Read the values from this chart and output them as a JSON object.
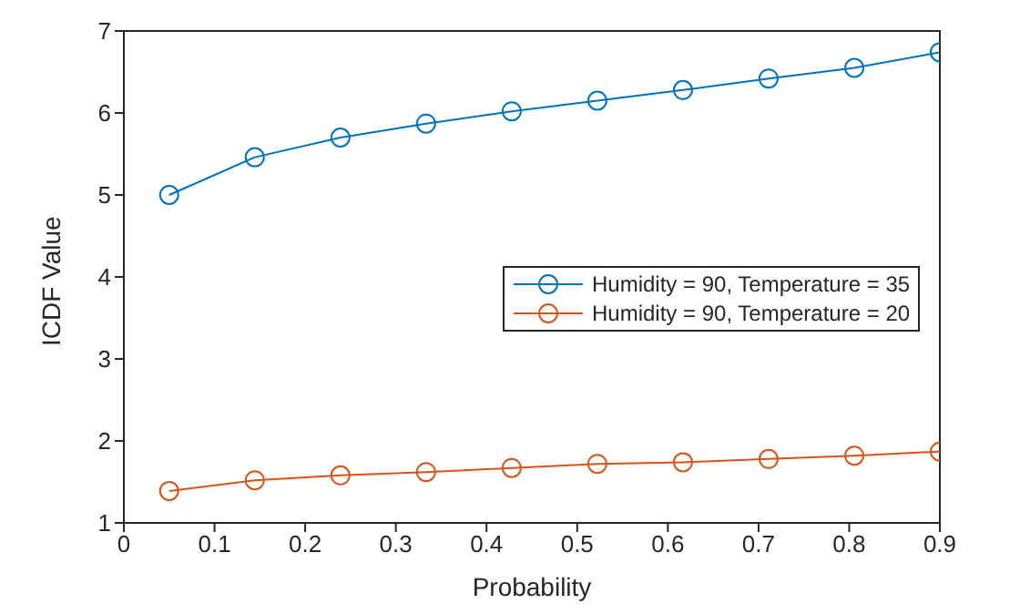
{
  "chart_data": {
    "type": "line",
    "xlabel": "Probability",
    "ylabel": "ICDF Value",
    "x": [
      0.05,
      0.1444,
      0.2389,
      0.3333,
      0.4278,
      0.5222,
      0.6167,
      0.7111,
      0.8056,
      0.9
    ],
    "series": [
      {
        "name": "Humidity = 90, Temperature = 35",
        "color": "#0072bd",
        "values": [
          5.0,
          5.46,
          5.7,
          5.87,
          6.02,
          6.15,
          6.28,
          6.42,
          6.55,
          6.74
        ]
      },
      {
        "name": "Humidity = 90, Temperature = 20",
        "color": "#d95319",
        "values": [
          1.39,
          1.52,
          1.58,
          1.62,
          1.67,
          1.72,
          1.74,
          1.78,
          1.82,
          1.87
        ]
      }
    ],
    "xlim": [
      0,
      0.9
    ],
    "xticks": [
      0,
      0.1,
      0.2,
      0.3,
      0.4,
      0.5,
      0.6,
      0.7,
      0.8,
      0.9
    ],
    "ylim": [
      1,
      7
    ],
    "yticks": [
      1,
      2,
      3,
      4,
      5,
      6,
      7
    ],
    "grid": false,
    "legend": "right",
    "marker": "circle",
    "line_style": "solid"
  }
}
